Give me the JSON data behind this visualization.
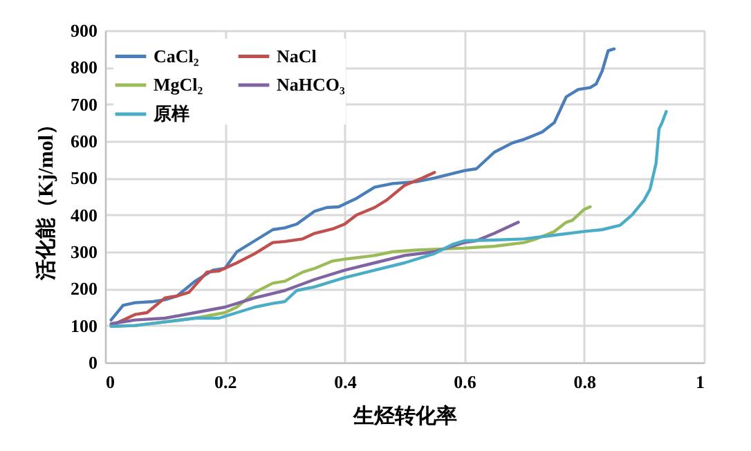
{
  "chart_data": {
    "type": "line",
    "xlabel": "生烃转化率",
    "ylabel": "活化能（Kj/mol）",
    "xlim": [
      0,
      1
    ],
    "xticks": [
      0,
      0.2,
      0.4,
      0.6,
      0.8,
      1
    ],
    "ylim": [
      0,
      900
    ],
    "yticks": [
      0,
      100,
      200,
      300,
      400,
      500,
      600,
      700,
      800,
      900
    ],
    "grid": true,
    "legend": "top left",
    "marker": "none",
    "line_style": "solid",
    "series": [
      {
        "name": "CaCl₂",
        "color": "#4a7ebb",
        "x": [
          0.01,
          0.03,
          0.05,
          0.08,
          0.1,
          0.12,
          0.15,
          0.18,
          0.2,
          0.22,
          0.25,
          0.28,
          0.3,
          0.32,
          0.35,
          0.37,
          0.39,
          0.42,
          0.45,
          0.48,
          0.52,
          0.55,
          0.6,
          0.62,
          0.65,
          0.68,
          0.7,
          0.73,
          0.75,
          0.77,
          0.79,
          0.81,
          0.82,
          0.83,
          0.84,
          0.85
        ],
        "values": [
          115,
          155,
          162,
          165,
          170,
          180,
          220,
          250,
          255,
          300,
          330,
          360,
          365,
          375,
          410,
          420,
          422,
          445,
          475,
          485,
          490,
          500,
          520,
          525,
          570,
          595,
          605,
          625,
          650,
          720,
          740,
          745,
          755,
          790,
          845,
          850
        ]
      },
      {
        "name": "NaCl",
        "color": "#c0504d",
        "x": [
          0.01,
          0.03,
          0.05,
          0.07,
          0.1,
          0.12,
          0.14,
          0.17,
          0.19,
          0.22,
          0.25,
          0.28,
          0.3,
          0.33,
          0.35,
          0.38,
          0.4,
          0.42,
          0.45,
          0.47,
          0.5,
          0.53,
          0.55
        ],
        "values": [
          100,
          115,
          130,
          135,
          175,
          180,
          190,
          245,
          248,
          270,
          295,
          325,
          328,
          335,
          350,
          362,
          375,
          400,
          420,
          440,
          480,
          500,
          515
        ]
      },
      {
        "name": "MgCl₂",
        "color": "#9bbb59",
        "x": [
          0.01,
          0.05,
          0.1,
          0.15,
          0.2,
          0.22,
          0.25,
          0.28,
          0.3,
          0.33,
          0.35,
          0.38,
          0.4,
          0.45,
          0.48,
          0.52,
          0.6,
          0.65,
          0.7,
          0.72,
          0.75,
          0.77,
          0.78,
          0.8,
          0.81
        ],
        "values": [
          98,
          100,
          110,
          120,
          135,
          150,
          190,
          215,
          220,
          245,
          255,
          275,
          280,
          290,
          300,
          305,
          310,
          315,
          325,
          335,
          355,
          380,
          385,
          415,
          422
        ]
      },
      {
        "name": "NaHCO₃",
        "color": "#8064a2",
        "x": [
          0.01,
          0.05,
          0.1,
          0.15,
          0.2,
          0.25,
          0.3,
          0.35,
          0.4,
          0.45,
          0.5,
          0.55,
          0.6,
          0.62,
          0.65,
          0.69
        ],
        "values": [
          105,
          115,
          120,
          135,
          150,
          175,
          195,
          225,
          250,
          270,
          290,
          300,
          325,
          330,
          350,
          380
        ]
      },
      {
        "name": "原样",
        "color": "#4bacc6",
        "x": [
          0.01,
          0.05,
          0.1,
          0.15,
          0.19,
          0.22,
          0.25,
          0.28,
          0.3,
          0.32,
          0.35,
          0.4,
          0.45,
          0.5,
          0.55,
          0.58,
          0.6,
          0.65,
          0.7,
          0.75,
          0.8,
          0.83,
          0.86,
          0.88,
          0.9,
          0.91,
          0.92,
          0.925,
          0.93,
          0.937
        ],
        "values": [
          98,
          100,
          110,
          120,
          120,
          135,
          150,
          160,
          165,
          195,
          205,
          230,
          250,
          270,
          295,
          320,
          330,
          332,
          335,
          345,
          355,
          360,
          372,
          400,
          440,
          470,
          540,
          633,
          650,
          680
        ]
      }
    ]
  }
}
